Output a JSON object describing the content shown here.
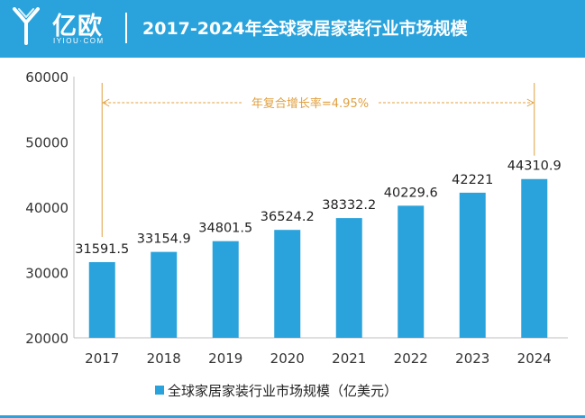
{
  "header": {
    "brand_cn": "亿欧",
    "brand_en": "IYIOU·COM",
    "title": "2017-2024年全球家居家装行业市场规模"
  },
  "colors": {
    "header_bg": "#2aa3dc",
    "bar": "#2aa3dc",
    "annotation": "#e0a040",
    "axis_text": "#333333"
  },
  "chart_data": {
    "type": "bar",
    "categories": [
      "2017",
      "2018",
      "2019",
      "2020",
      "2021",
      "2022",
      "2023",
      "2024"
    ],
    "series": [
      {
        "name": "全球家居家装行业市场规模（亿美元）",
        "values": [
          31591.5,
          33154.9,
          34801.5,
          36524.2,
          38332.2,
          40229.6,
          42221,
          44310.9
        ]
      }
    ],
    "data_labels": [
      "31591.5",
      "33154.9",
      "34801.5",
      "36524.2",
      "38332.2",
      "40229.6",
      "42221",
      "44310.9"
    ],
    "y_ticks": [
      "20000",
      "30000",
      "40000",
      "50000",
      "60000"
    ],
    "ylim": [
      20000,
      60000
    ],
    "annotation": "年复合增长率=4.95%",
    "legend_position": "bottom",
    "grid": false
  }
}
